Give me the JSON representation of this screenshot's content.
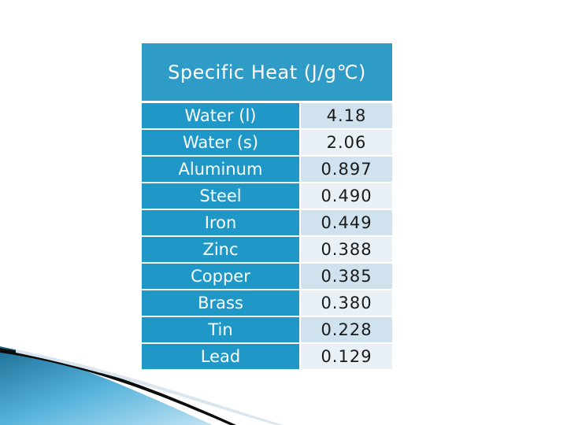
{
  "table": {
    "header": "Specific Heat (J/g℃)",
    "rows": [
      {
        "name": "Water (l)",
        "value": "4.18"
      },
      {
        "name": "Water (s)",
        "value": "2.06"
      },
      {
        "name": "Aluminum",
        "value": "0.897"
      },
      {
        "name": "Steel",
        "value": "0.490"
      },
      {
        "name": "Iron",
        "value": "0.449"
      },
      {
        "name": "Zinc",
        "value": "0.388"
      },
      {
        "name": "Copper",
        "value": "0.385"
      },
      {
        "name": "Brass",
        "value": "0.380"
      },
      {
        "name": "Tin",
        "value": "0.228"
      },
      {
        "name": "Lead",
        "value": "0.129"
      }
    ]
  },
  "colors": {
    "header_bg": "#2e9cc6",
    "name_bg": "#1f97c7",
    "value_odd_bg": "#cfe2ee",
    "value_even_bg": "#e9f1f6"
  }
}
